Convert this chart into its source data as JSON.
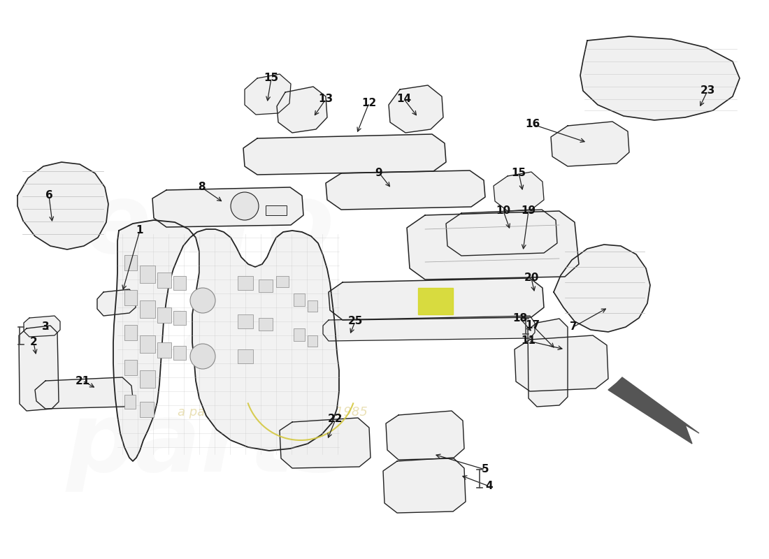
{
  "bg_color": "#ffffff",
  "line_color": "#222222",
  "text_color": "#111111",
  "arrow_color": "#222222",
  "watermark_color": "#cccccc",
  "watermark_alpha": 0.1,
  "subtext_color": "#c8b040",
  "subtext_alpha": 0.38,
  "font_size": 11
}
